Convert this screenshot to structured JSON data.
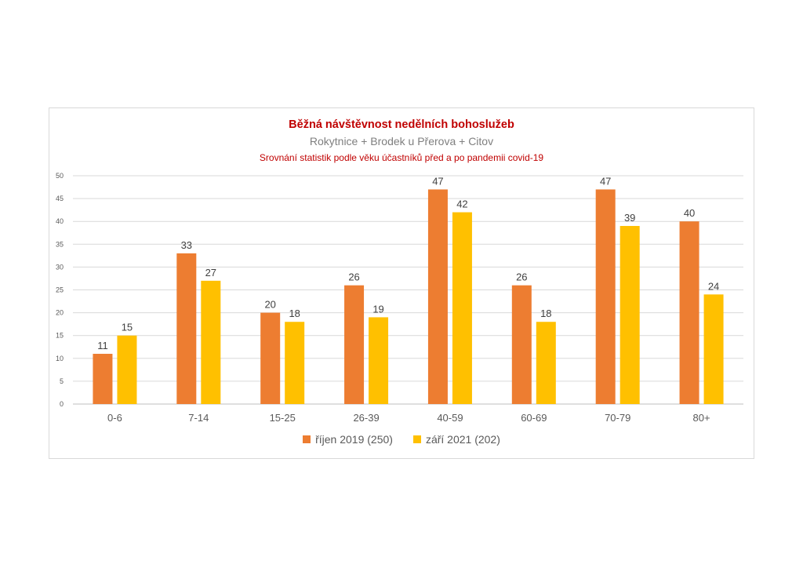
{
  "chart_data": {
    "type": "bar",
    "title": "Běžná návštěvnost nedělních bohoslužeb",
    "subtitle": "Rokytnice + Brodek u Přerova + Citov",
    "subtitle2": "Srovnání statistik podle věku účastníků před a po pandemii covid-19",
    "categories": [
      "0-6",
      "7-14",
      "15-25",
      "26-39",
      "40-59",
      "60-69",
      "70-79",
      "80+"
    ],
    "series": [
      {
        "name": "říjen 2019 (250)",
        "color": "#ed7d31",
        "values": [
          11,
          33,
          20,
          26,
          47,
          26,
          47,
          40
        ]
      },
      {
        "name": "září 2021 (202)",
        "color": "#ffc000",
        "values": [
          15,
          27,
          18,
          19,
          42,
          18,
          39,
          24
        ]
      }
    ],
    "ylim": [
      0,
      50
    ],
    "yticks": [
      0,
      5,
      10,
      15,
      20,
      25,
      30,
      35,
      40,
      45,
      50
    ],
    "grid": true,
    "legend_position": "bottom"
  }
}
